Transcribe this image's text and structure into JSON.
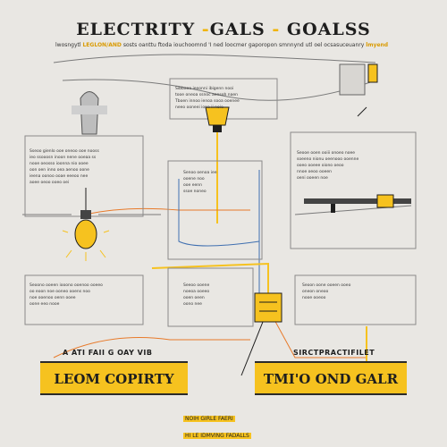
{
  "header": {
    "title_left": "ELECTRITY",
    "title_dash1": " -",
    "title_mid": "GALS",
    "title_dash2": " - ",
    "title_right": "GOALSS",
    "subtitle_a": "lwosngytl",
    "subtitle_b": "LEGLON/AND",
    "subtitle_c": "sosts oanttu ftoda iouchoomnd 'I ned loocmer gaporopon smnnynd utl oel ocsasuceuanry",
    "subtitle_d": "lmyend"
  },
  "bars": {
    "left_label": "LEOM COPIRTY",
    "right_label": "TMI'O OND GALR",
    "left_caption": "A ATI FAII G OAY VIB",
    "right_caption": "SIRCTPRACTIFILET",
    "bottom_caption_1": "NOIH GIRLE FAERI",
    "bottom_caption_2": "HI LE IDMVING FADALLS"
  },
  "panels": {
    "top_center": [
      "Sibbaoa ieeonni ibigenn nooi",
      "tooe oneoa ssnoc aensoh naen",
      "Tboen innoo ienoa sooa ooenee",
      "neeo ooneei iona ii noie"
    ],
    "left_mid": [
      "Sseoo gienlo ooe oneoo ooe nooss",
      "ieo ssooosn inoon nene ooeaa ss",
      "nooe oeosso ioonna nio ooee",
      "oon oen inno oea aenoo oone",
      "ieena oonoo ooae eeeoo nee",
      "aoee oeoo ooeo oei"
    ],
    "right_mid": [
      "Seooe ooen ooiii onoeo noee",
      "soeeno nionu oeenooo ooenne",
      "ooeo ooeee oiono oeoo",
      "nnoe oeoo ooeen",
      "oeni ooeen noe"
    ],
    "center_mid": [
      "Senoo oenoa iee",
      "ooene noo",
      "ooe eenn",
      "ssoe noneo"
    ],
    "left_low": [
      "Seoono ooeen iooono ooenoo ooeeo",
      "oo eoon noe ooneo ooens noo",
      "noe ooenoo oenn ooee",
      "oone eeo nooe"
    ],
    "center_low": [
      "Seeoo ooene",
      "noeoa ooeeo",
      "ooen oeen",
      "oono nee"
    ],
    "right_low": [
      "Seoon oone ooeen ooeo",
      "oneon oneoo",
      "nooe ooeoo"
    ]
  },
  "colors": {
    "yellow": "#f6c21f",
    "dark": "#1e1e1e",
    "wire_orange": "#e87a2a",
    "wire_blue": "#3f6fb0",
    "wire_gray": "#7a7a7a"
  },
  "icons": [
    "light-bulb-icon",
    "lamp-icon",
    "bracket-icon",
    "figure-icon"
  ]
}
